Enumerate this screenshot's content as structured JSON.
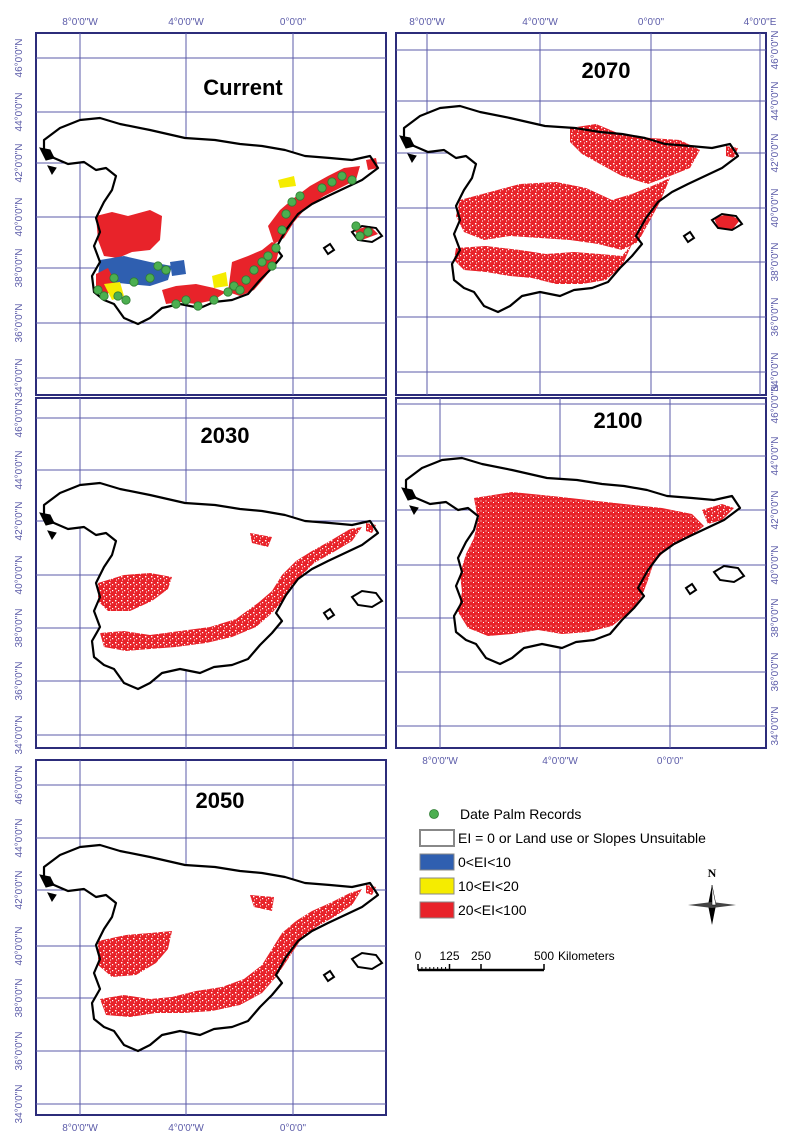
{
  "colors": {
    "frame": "#2c2c7a",
    "grid": "#5b5ba8",
    "tick_label": "#5b5ba8",
    "outline": "#000000",
    "records": "#4caf50",
    "class_low": "#2f5fb0",
    "class_mid": "#f5ec00",
    "class_high": "#e8232a"
  },
  "panels": [
    {
      "id": "current",
      "title": "Current",
      "x_ticks": [
        {
          "lon": -8,
          "label": "8°0'0\"W",
          "side": "top"
        },
        {
          "lon": -4,
          "label": "4°0'0\"W",
          "side": "top"
        },
        {
          "lon": 0,
          "label": "0°0'0\"",
          "side": "top"
        }
      ],
      "y_ticks": [
        {
          "lat": 46,
          "label": "46°0'0\"N"
        },
        {
          "lat": 44,
          "label": "44°0'0\"N"
        },
        {
          "lat": 42,
          "label": "42°0'0\"N"
        },
        {
          "lat": 40,
          "label": "40°0'0\"N"
        },
        {
          "lat": 38,
          "label": "38°0'0\"N"
        },
        {
          "lat": 36,
          "label": "36°0'0\"N"
        },
        {
          "lat": 34,
          "label": "34°0'0\"N"
        }
      ],
      "y_side": "left"
    },
    {
      "id": "2070",
      "title": "2070",
      "x_ticks": [
        {
          "lon": -8,
          "label": "8°0'0\"W",
          "side": "top"
        },
        {
          "lon": -4,
          "label": "4°0'0\"W",
          "side": "top"
        },
        {
          "lon": 0,
          "label": "0°0'0\"",
          "side": "top"
        },
        {
          "lon": 4,
          "label": "4°0'0\"E",
          "side": "top"
        }
      ],
      "y_ticks": [
        {
          "lat": 46,
          "label": "46°0'0\"N"
        },
        {
          "lat": 44,
          "label": "44°0'0\"N"
        },
        {
          "lat": 42,
          "label": "42°0'0\"N"
        },
        {
          "lat": 40,
          "label": "40°0'0\"N"
        },
        {
          "lat": 38,
          "label": "38°0'0\"N"
        },
        {
          "lat": 36,
          "label": "36°0'0\"N"
        },
        {
          "lat": 34,
          "label": "34°0'0\"N"
        }
      ],
      "y_side": "right"
    },
    {
      "id": "2030",
      "title": "2030",
      "x_ticks": [],
      "y_ticks": [
        {
          "lat": 46,
          "label": "46°0'0\"N"
        },
        {
          "lat": 44,
          "label": "44°0'0\"N"
        },
        {
          "lat": 42,
          "label": "42°0'0\"N"
        },
        {
          "lat": 40,
          "label": "40°0'0\"N"
        },
        {
          "lat": 38,
          "label": "38°0'0\"N"
        },
        {
          "lat": 36,
          "label": "36°0'0\"N"
        },
        {
          "lat": 34,
          "label": "34°0'0\"N"
        }
      ],
      "y_side": "left"
    },
    {
      "id": "2100",
      "title": "2100",
      "x_ticks": [
        {
          "lon": -8,
          "label": "8°0'0\"W",
          "side": "bottom"
        },
        {
          "lon": -4,
          "label": "4°0'0\"W",
          "side": "bottom"
        },
        {
          "lon": 0,
          "label": "0°0'0\"",
          "side": "bottom"
        }
      ],
      "y_ticks": [
        {
          "lat": 46,
          "label": "46°0'0\"N"
        },
        {
          "lat": 44,
          "label": "44°0'0\"N"
        },
        {
          "lat": 42,
          "label": "42°0'0\"N"
        },
        {
          "lat": 40,
          "label": "40°0'0\"N"
        },
        {
          "lat": 38,
          "label": "38°0'0\"N"
        },
        {
          "lat": 36,
          "label": "36°0'0\"N"
        },
        {
          "lat": 34,
          "label": "34°0'0\"N"
        }
      ],
      "y_side": "right"
    },
    {
      "id": "2050",
      "title": "2050",
      "x_ticks": [
        {
          "lon": -8,
          "label": "8°0'0\"W",
          "side": "bottom"
        },
        {
          "lon": -4,
          "label": "4°0'0\"W",
          "side": "bottom"
        },
        {
          "lon": 0,
          "label": "0°0'0\"",
          "side": "bottom"
        }
      ],
      "y_ticks": [
        {
          "lat": 46,
          "label": "46°0'0\"N"
        },
        {
          "lat": 44,
          "label": "44°0'0\"N"
        },
        {
          "lat": 42,
          "label": "42°0'0\"N"
        },
        {
          "lat": 40,
          "label": "40°0'0\"N"
        },
        {
          "lat": 38,
          "label": "38°0'0\"N"
        },
        {
          "lat": 36,
          "label": "36°0'0\"N"
        },
        {
          "lat": 34,
          "label": "34°0'0\"N"
        }
      ],
      "y_side": "left"
    }
  ],
  "legend": {
    "items": [
      {
        "symbol": "dot",
        "color_key": "records",
        "label": "Date Palm Records"
      },
      {
        "symbol": "box-outline",
        "color_key": "outline",
        "label": "EI = 0 or Land use or Slopes Unsuitable"
      },
      {
        "symbol": "box",
        "color_key": "class_low",
        "label": "0<EI<10"
      },
      {
        "symbol": "box",
        "color_key": "class_mid",
        "label": "10<EI<20"
      },
      {
        "symbol": "box",
        "color_key": "class_high",
        "label": "20<EI<100"
      }
    ]
  },
  "north_arrow": {
    "label": "N"
  },
  "scale_bar": {
    "ticks": [
      "0",
      "125",
      "250",
      "500"
    ],
    "unit": "Kilometers"
  }
}
